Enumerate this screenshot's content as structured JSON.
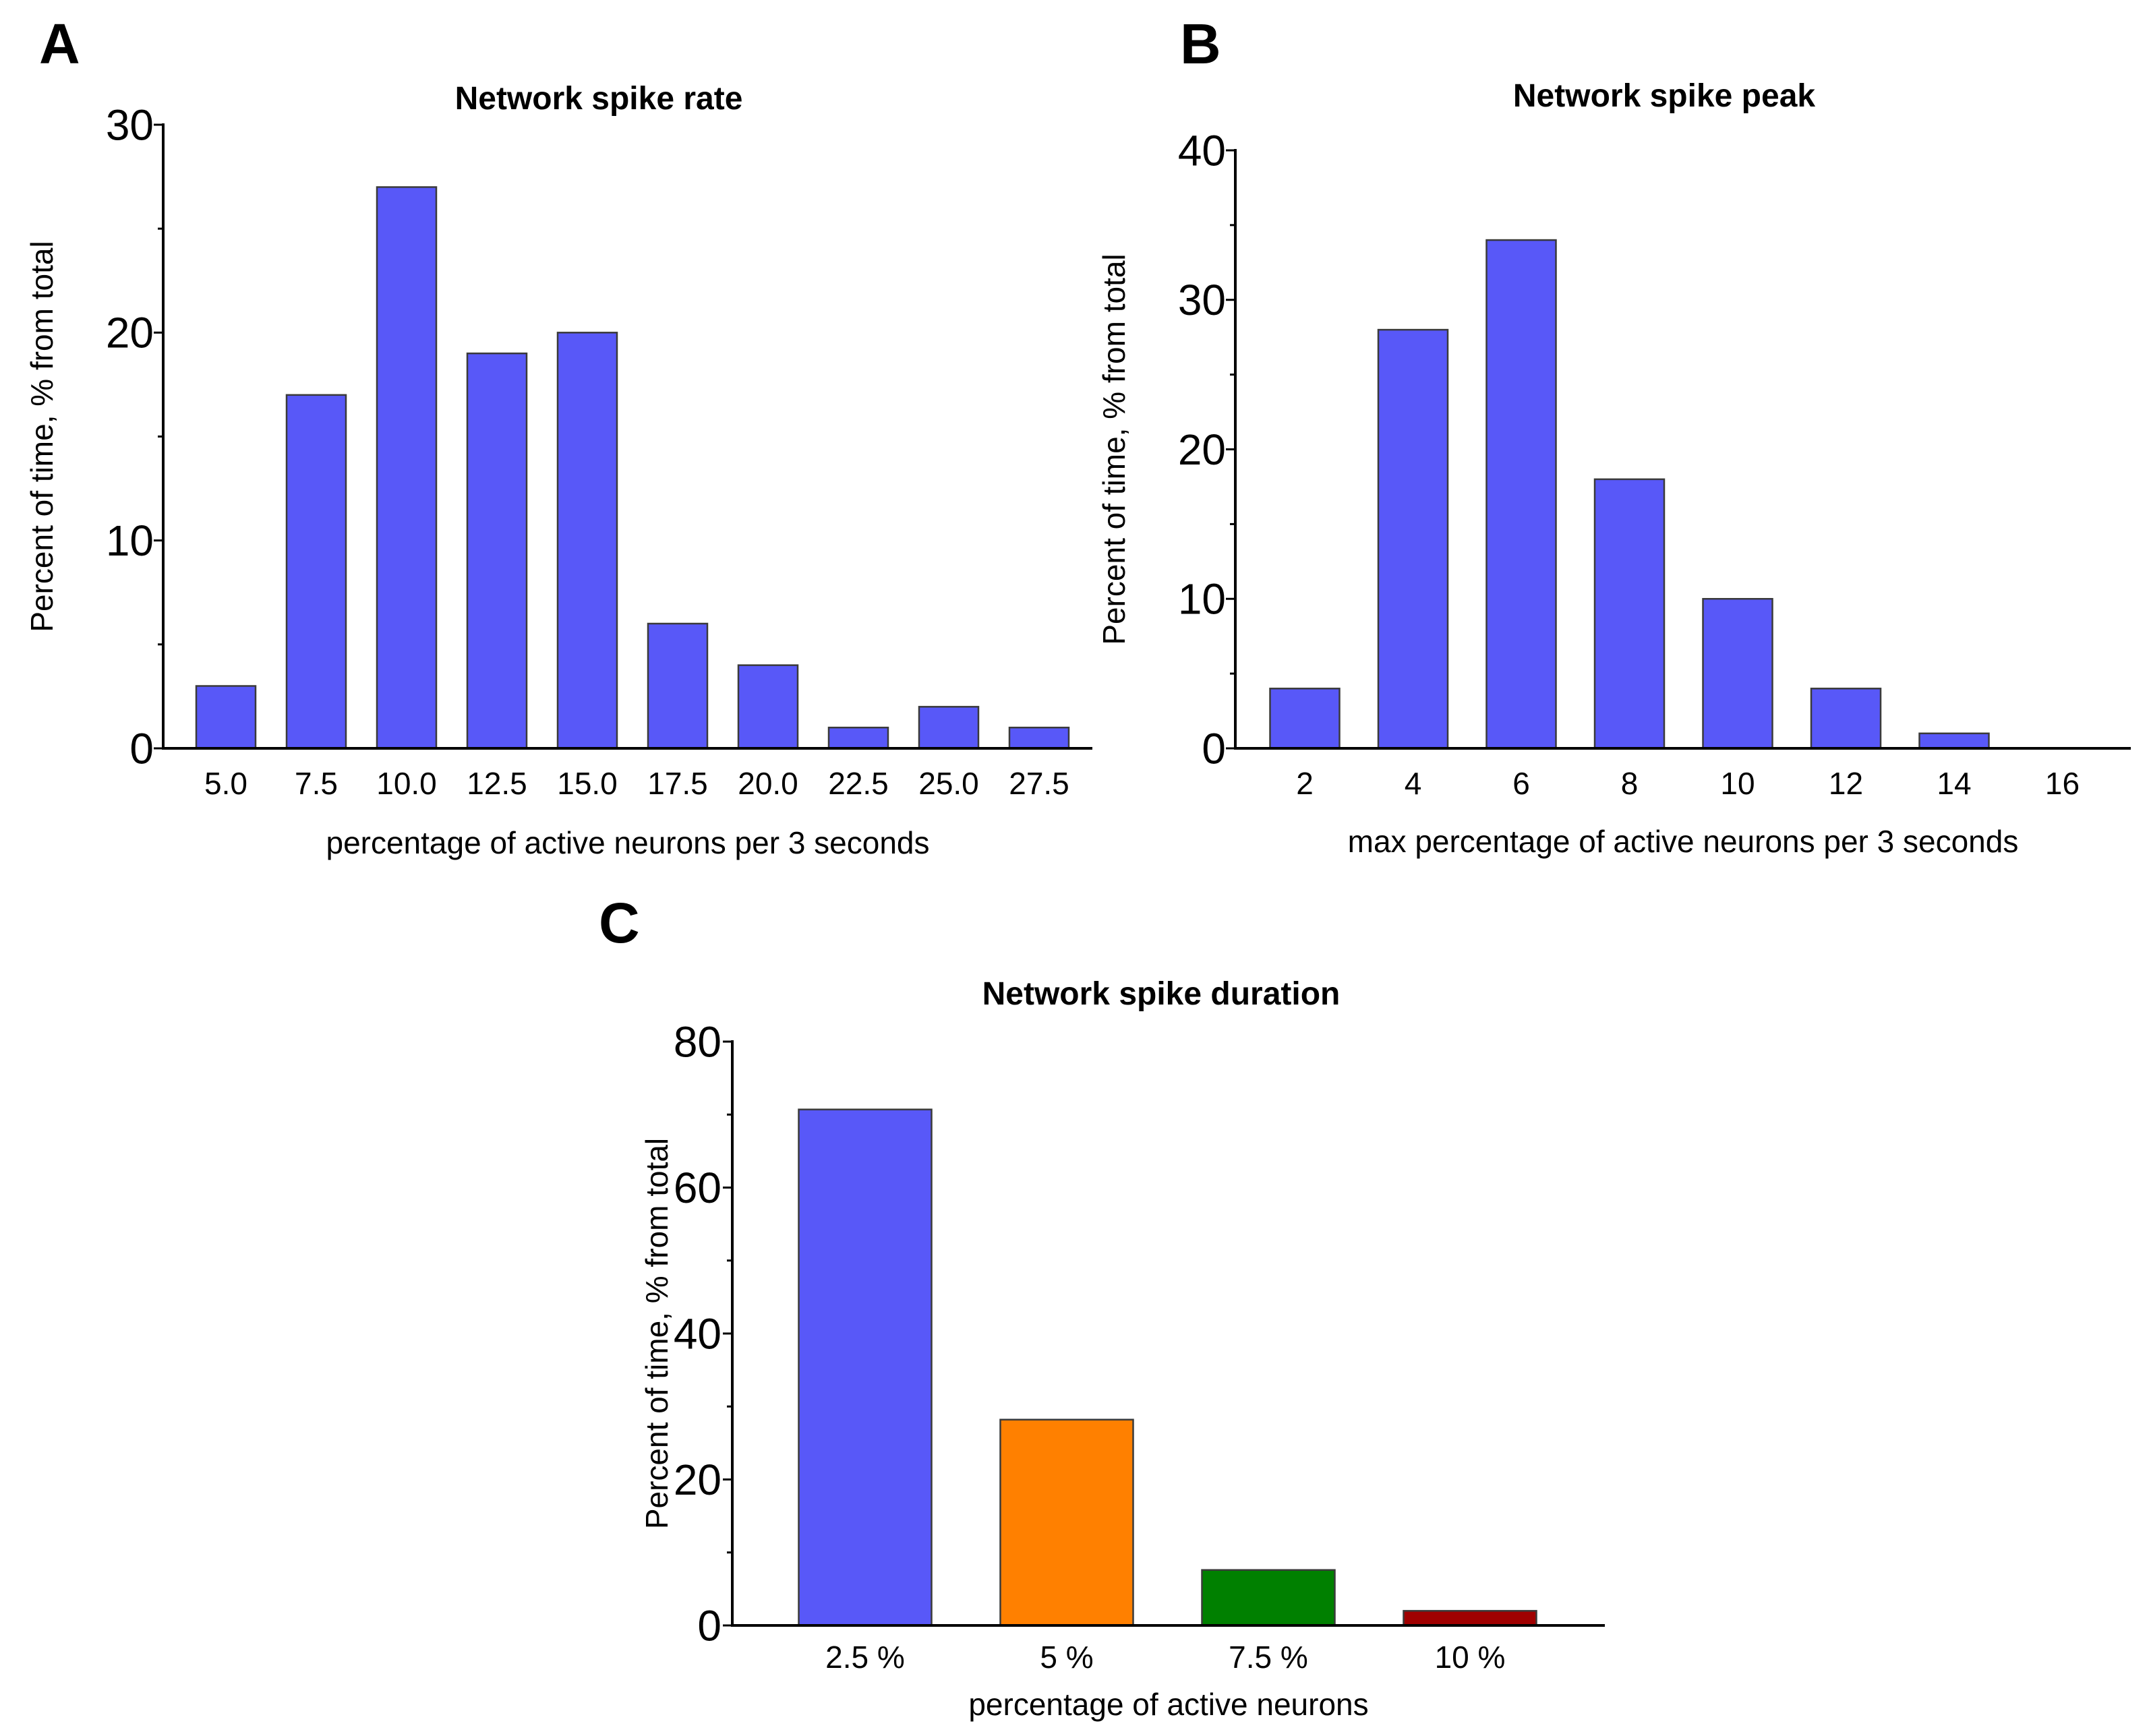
{
  "panels": {
    "a": "A",
    "b": "B",
    "c": "C"
  },
  "chart_data": [
    {
      "id": "a",
      "type": "bar",
      "title": "Network spike rate",
      "xlabel": "percentage of active neurons per 3 seconds",
      "ylabel": "Percent of time, % from total",
      "categories": [
        "5.0",
        "7.5",
        "10.0",
        "12.5",
        "15.0",
        "17.5",
        "20.0",
        "22.5",
        "25.0",
        "27.5"
      ],
      "values": [
        3,
        17,
        27,
        19,
        20,
        6,
        4,
        1,
        2,
        1
      ],
      "colors": [
        "#5858f8"
      ],
      "ylim": [
        0,
        30
      ],
      "yticks": [
        0,
        10,
        20,
        30
      ],
      "yminor": [
        5,
        15,
        25
      ],
      "grid": false
    },
    {
      "id": "b",
      "type": "bar",
      "title": "Network spike peak",
      "xlabel": "max percentage of active neurons per 3 seconds",
      "ylabel": "Percent of time, % from total",
      "categories": [
        "2",
        "4",
        "6",
        "8",
        "10",
        "12",
        "14",
        "16"
      ],
      "values": [
        4,
        28,
        34,
        18,
        10,
        4,
        1,
        0
      ],
      "colors": [
        "#5858f8"
      ],
      "ylim": [
        0,
        40
      ],
      "yticks": [
        0,
        10,
        20,
        30,
        40
      ],
      "yminor": [
        5,
        15,
        25,
        35
      ],
      "grid": false
    },
    {
      "id": "c",
      "type": "bar",
      "title": "Network spike duration",
      "xlabel": "percentage of active neurons",
      "ylabel": "Percent of time, % from total",
      "categories": [
        "2.5 %",
        "5 %",
        "7.5 %",
        "10 %"
      ],
      "values": [
        70.7,
        28.2,
        7.6,
        2.0
      ],
      "colors": [
        "#5858f8",
        "#ff8000",
        "#008000",
        "#a00000"
      ],
      "ylim": [
        0,
        80
      ],
      "yticks": [
        0,
        20,
        40,
        60,
        80
      ],
      "yminor": [
        10,
        30,
        50,
        70
      ],
      "grid": false
    }
  ]
}
